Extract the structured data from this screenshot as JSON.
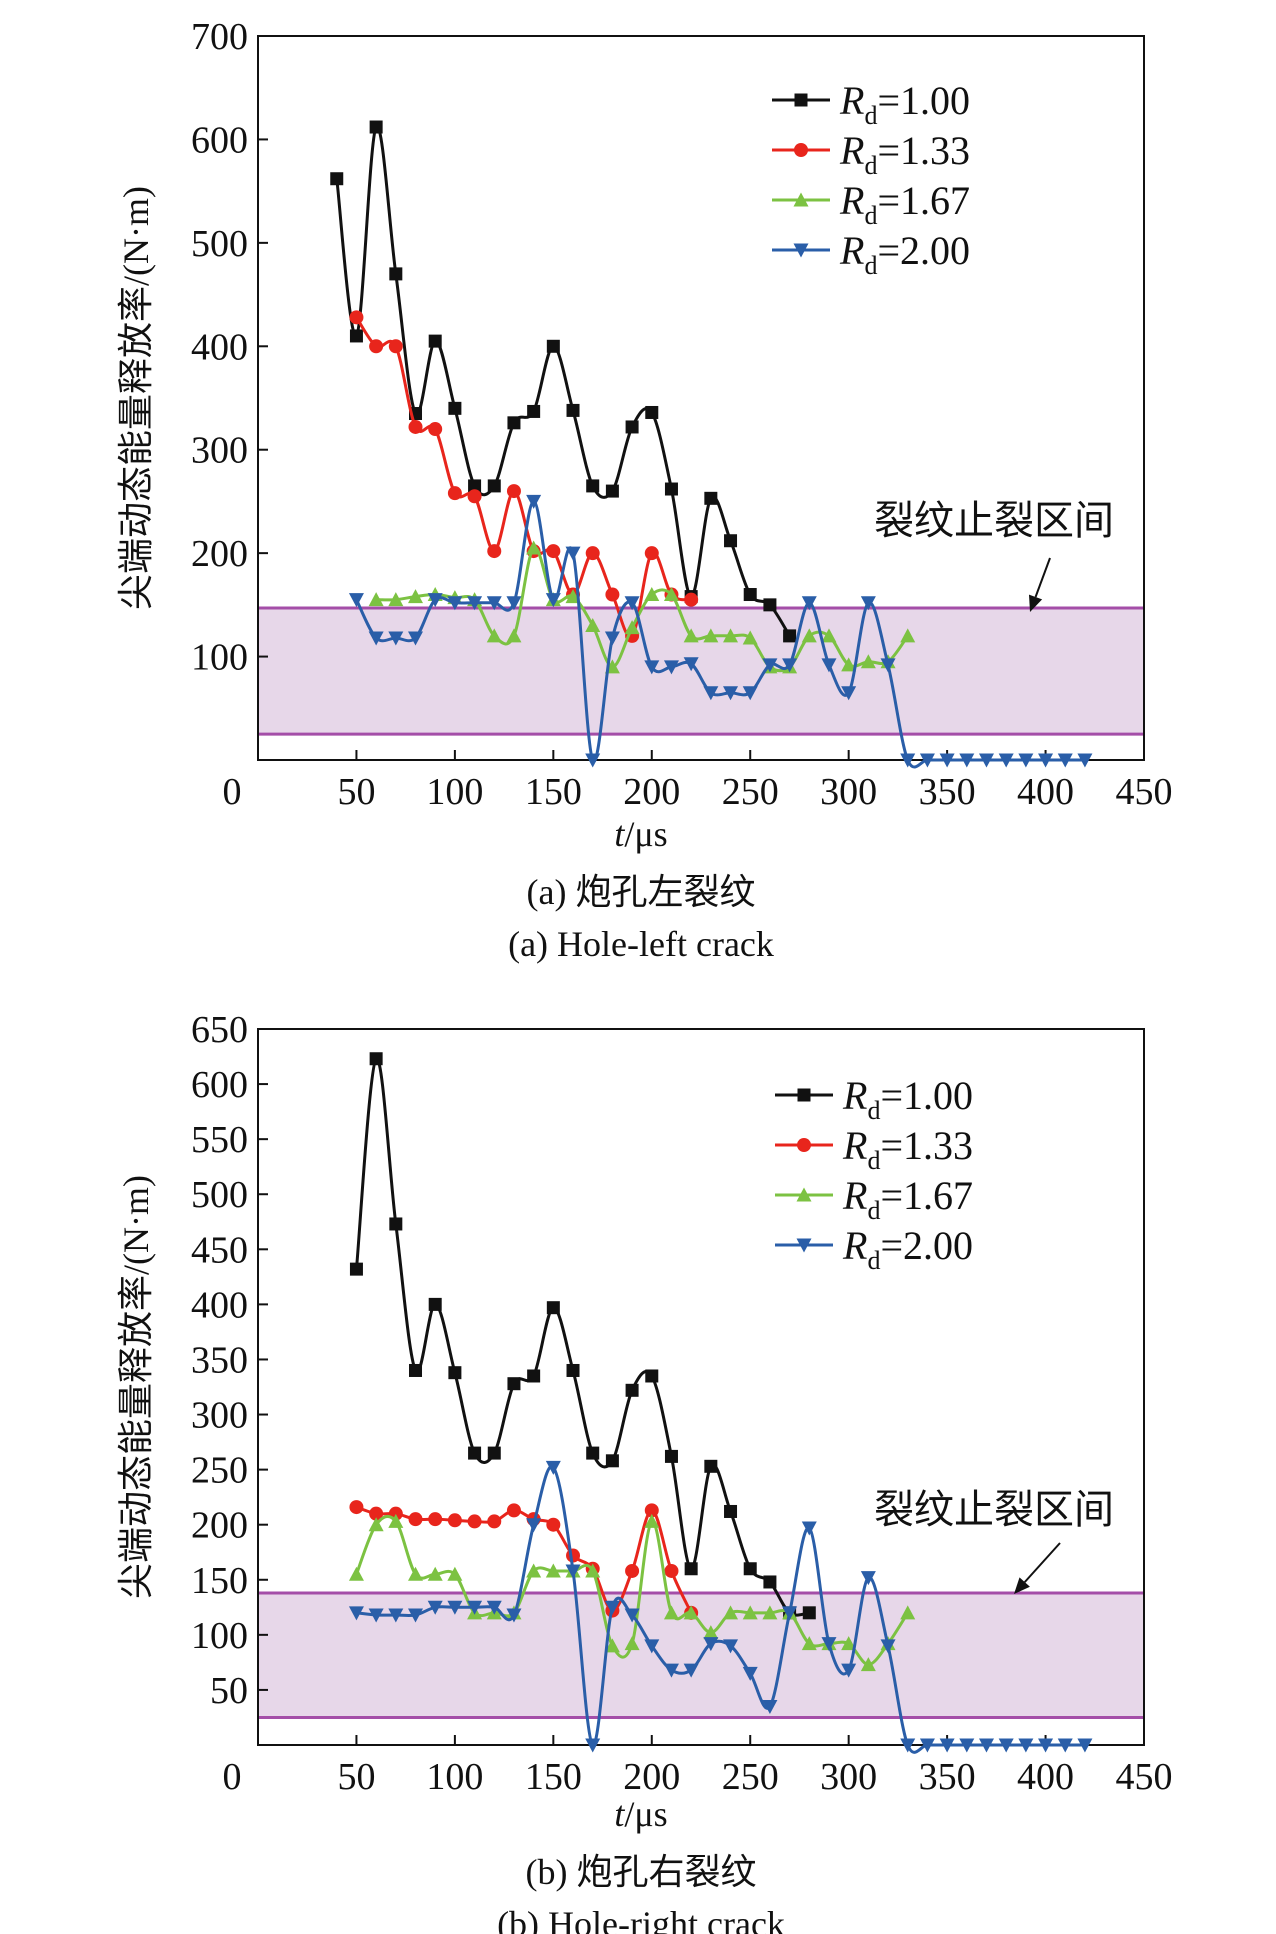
{
  "colors": {
    "rd100": "#111111",
    "rd133": "#e8251c",
    "rd167": "#7cc242",
    "rd200": "#2a5ea8",
    "band_fill": "#e7d7e9",
    "band_line": "#a44ea8"
  },
  "chart_data": [
    {
      "id": "a",
      "type": "line",
      "caption_cn": "(a) 炮孔左裂纹",
      "caption_en": "(a) Hole-left crack",
      "ylabel": "尖端动态能量释放率/(N·m)",
      "xlabel_italic": "t",
      "xlabel_unit": "/μs",
      "xlim": [
        0,
        450
      ],
      "ylim": [
        0,
        700
      ],
      "xticks": [
        0,
        50,
        100,
        150,
        200,
        250,
        300,
        350,
        400,
        450
      ],
      "yticks": [
        100,
        200,
        300,
        400,
        500,
        600,
        700
      ],
      "x_zero_label": "0",
      "band": {
        "y1": 25,
        "y2": 147,
        "label": "裂纹止裂区间"
      },
      "legend_position": "top-right",
      "series": [
        {
          "name": "Rd=1.00",
          "sym": "R",
          "sub": "d",
          "val": "=1.00",
          "color": "#111111",
          "marker": "square",
          "x": [
            40,
            50,
            60,
            70,
            80,
            90,
            100,
            110,
            120,
            130,
            140,
            150,
            160,
            170,
            180,
            190,
            200,
            210,
            220,
            230,
            240,
            250,
            260,
            270
          ],
          "y": [
            562,
            410,
            612,
            470,
            335,
            405,
            340,
            265,
            265,
            326,
            337,
            400,
            338,
            265,
            260,
            322,
            336,
            262,
            158,
            253,
            212,
            160,
            150,
            120
          ]
        },
        {
          "name": "Rd=1.33",
          "sym": "R",
          "sub": "d",
          "val": "=1.33",
          "color": "#e8251c",
          "marker": "circle",
          "x": [
            50,
            60,
            70,
            80,
            90,
            100,
            110,
            120,
            130,
            140,
            150,
            160,
            170,
            180,
            190,
            200,
            210,
            220
          ],
          "y": [
            428,
            400,
            400,
            322,
            320,
            258,
            255,
            202,
            260,
            202,
            202,
            160,
            200,
            160,
            120,
            200,
            160,
            155
          ]
        },
        {
          "name": "Rd=1.67",
          "sym": "R",
          "sub": "d",
          "val": "=1.67",
          "color": "#7cc242",
          "marker": "triangle-up",
          "x": [
            60,
            70,
            80,
            90,
            100,
            110,
            120,
            130,
            140,
            150,
            160,
            170,
            180,
            190,
            200,
            210,
            220,
            230,
            240,
            250,
            260,
            270,
            280,
            290,
            300,
            310,
            320,
            330
          ],
          "y": [
            155,
            155,
            158,
            160,
            157,
            155,
            120,
            120,
            205,
            155,
            158,
            130,
            90,
            128,
            160,
            160,
            120,
            120,
            120,
            118,
            90,
            90,
            120,
            120,
            92,
            95,
            95,
            120
          ]
        },
        {
          "name": "Rd=2.00",
          "sym": "R",
          "sub": "d",
          "val": "=2.00",
          "color": "#2a5ea8",
          "marker": "triangle-down",
          "x": [
            50,
            60,
            70,
            80,
            90,
            100,
            110,
            120,
            130,
            140,
            150,
            160,
            170,
            180,
            190,
            200,
            210,
            220,
            230,
            240,
            250,
            260,
            270,
            280,
            290,
            300,
            310,
            320,
            330,
            340,
            350,
            360,
            370,
            380,
            390,
            400,
            410,
            420
          ],
          "y": [
            155,
            118,
            118,
            118,
            155,
            152,
            152,
            152,
            152,
            250,
            155,
            200,
            0,
            118,
            152,
            90,
            90,
            93,
            65,
            65,
            65,
            92,
            92,
            152,
            92,
            65,
            152,
            92,
            0,
            0,
            0,
            0,
            0,
            0,
            0,
            0,
            0,
            0
          ]
        }
      ]
    },
    {
      "id": "b",
      "type": "line",
      "caption_cn": "(b) 炮孔右裂纹",
      "caption_en": "(b) Hole-right crack",
      "ylabel": "尖端动态能量释放率/(N·m)",
      "xlabel_italic": "t",
      "xlabel_unit": "/μs",
      "xlim": [
        0,
        450
      ],
      "ylim": [
        0,
        650
      ],
      "xticks": [
        0,
        50,
        100,
        150,
        200,
        250,
        300,
        350,
        400,
        450
      ],
      "yticks": [
        50,
        100,
        150,
        200,
        250,
        300,
        350,
        400,
        450,
        500,
        550,
        600,
        650
      ],
      "x_zero_label": "0",
      "band": {
        "y1": 25,
        "y2": 138,
        "label": "裂纹止裂区间"
      },
      "legend_position": "top-right",
      "series": [
        {
          "name": "Rd=1.00",
          "sym": "R",
          "sub": "d",
          "val": "=1.00",
          "color": "#111111",
          "marker": "square",
          "x": [
            50,
            60,
            70,
            80,
            90,
            100,
            110,
            120,
            130,
            140,
            150,
            160,
            170,
            180,
            190,
            200,
            210,
            220,
            230,
            240,
            250,
            260,
            270,
            280
          ],
          "y": [
            432,
            623,
            473,
            340,
            400,
            338,
            265,
            265,
            328,
            335,
            397,
            340,
            265,
            258,
            322,
            335,
            262,
            160,
            253,
            212,
            160,
            148,
            120,
            120
          ]
        },
        {
          "name": "Rd=1.33",
          "sym": "R",
          "sub": "d",
          "val": "=1.33",
          "color": "#e8251c",
          "marker": "circle",
          "x": [
            50,
            60,
            70,
            80,
            90,
            100,
            110,
            120,
            130,
            140,
            150,
            160,
            170,
            180,
            190,
            200,
            210,
            220
          ],
          "y": [
            216,
            210,
            210,
            205,
            205,
            204,
            203,
            203,
            213,
            205,
            200,
            172,
            160,
            122,
            158,
            213,
            158,
            120
          ]
        },
        {
          "name": "Rd=1.67",
          "sym": "R",
          "sub": "d",
          "val": "=1.67",
          "color": "#7cc242",
          "marker": "triangle-up",
          "x": [
            50,
            60,
            70,
            80,
            90,
            100,
            110,
            120,
            130,
            140,
            150,
            160,
            170,
            180,
            190,
            200,
            210,
            220,
            230,
            240,
            250,
            260,
            270,
            280,
            290,
            300,
            310,
            320,
            330
          ],
          "y": [
            155,
            200,
            203,
            155,
            155,
            155,
            120,
            120,
            120,
            158,
            158,
            158,
            158,
            90,
            92,
            203,
            120,
            120,
            102,
            120,
            120,
            120,
            120,
            92,
            92,
            92,
            73,
            92,
            120
          ]
        },
        {
          "name": "Rd=2.00",
          "sym": "R",
          "sub": "d",
          "val": "=2.00",
          "color": "#2a5ea8",
          "marker": "triangle-down",
          "x": [
            50,
            60,
            70,
            80,
            90,
            100,
            110,
            120,
            130,
            140,
            150,
            160,
            170,
            180,
            190,
            200,
            210,
            220,
            230,
            240,
            250,
            260,
            270,
            280,
            290,
            300,
            310,
            320,
            330,
            340,
            350,
            360,
            370,
            380,
            390,
            400,
            410,
            420
          ],
          "y": [
            120,
            118,
            118,
            118,
            125,
            125,
            125,
            125,
            118,
            200,
            252,
            158,
            0,
            125,
            118,
            90,
            68,
            68,
            92,
            90,
            65,
            35,
            120,
            197,
            92,
            68,
            152,
            90,
            0,
            0,
            0,
            0,
            0,
            0,
            0,
            0,
            0,
            0
          ]
        }
      ]
    }
  ]
}
